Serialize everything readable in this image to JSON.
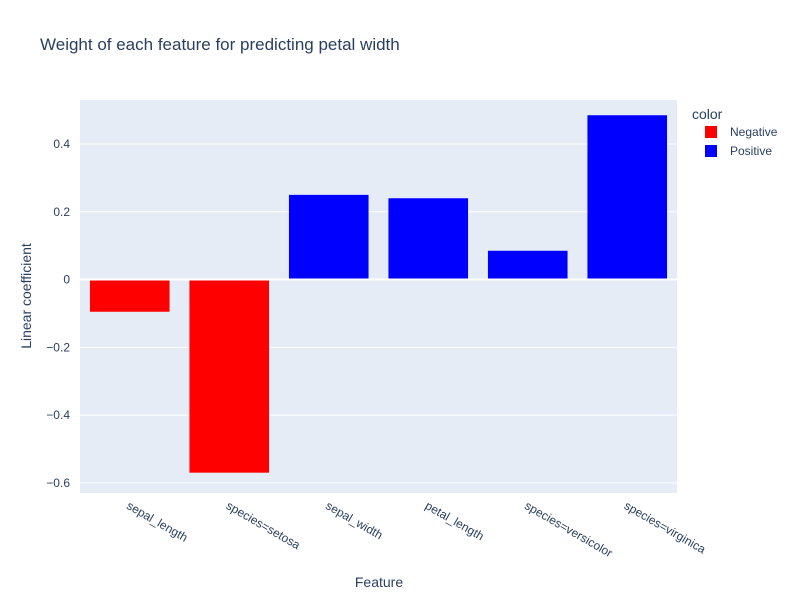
{
  "chart_data": {
    "type": "bar",
    "title": "Weight of each feature for predicting petal width",
    "xlabel": "Feature",
    "ylabel": "Linear coefficient",
    "categories": [
      "sepal_length",
      "species=setosa",
      "sepal_width",
      "petal_length",
      "species=versicolor",
      "species=virginica"
    ],
    "values": [
      -0.095,
      -0.57,
      0.25,
      0.24,
      0.085,
      0.485
    ],
    "bar_colors": [
      "Negative",
      "Negative",
      "Positive",
      "Positive",
      "Positive",
      "Positive"
    ],
    "ylim": [
      -0.63,
      0.53
    ],
    "yticks": [
      0.4,
      0.2,
      0,
      -0.2,
      -0.4,
      -0.6
    ],
    "ytick_labels": [
      "0.4",
      "0.2",
      "0",
      "−0.2",
      "−0.4",
      "−0.6"
    ],
    "grid": true,
    "legend": {
      "title": "color",
      "position": "top-right",
      "entries": [
        {
          "name": "Negative",
          "color": "#ff0000"
        },
        {
          "name": "Positive",
          "color": "#0000ff"
        }
      ]
    },
    "colors": {
      "plot_background": "#e5ecf6",
      "gridline": "#ffffff",
      "text": "#2a3f5f"
    }
  }
}
